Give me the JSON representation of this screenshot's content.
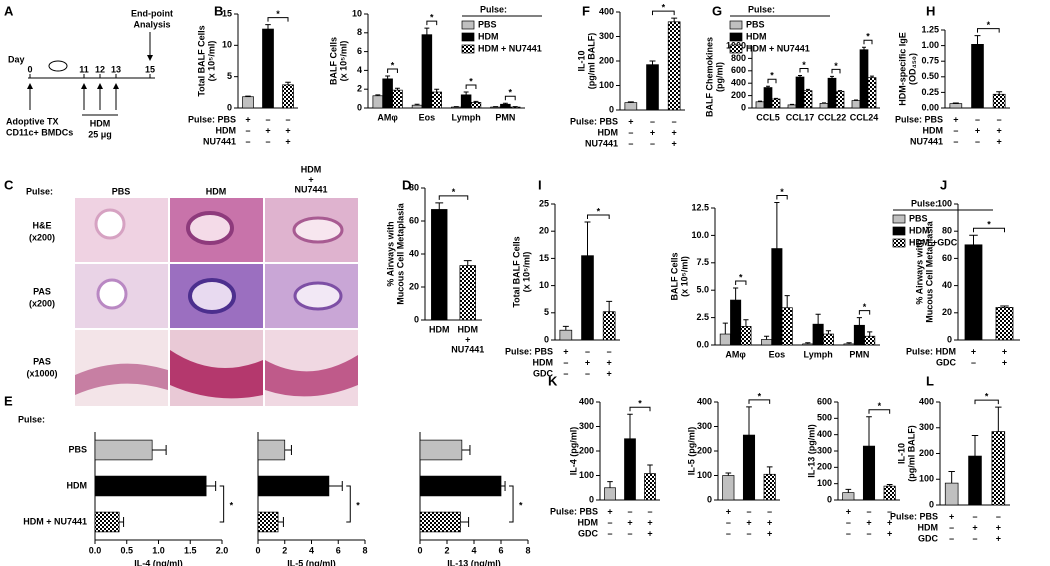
{
  "panel_labels": [
    "A",
    "B",
    "C",
    "D",
    "E",
    "F",
    "G",
    "H",
    "I",
    "J",
    "K",
    "L"
  ],
  "schematic": {
    "day": "Day",
    "days": [
      "0",
      "11",
      "12",
      "13",
      "15"
    ],
    "endpoint": [
      "End-point",
      "Analysis"
    ],
    "transfer": [
      "Adoptive TX",
      "CD11c+ BMDCs"
    ],
    "pulse": [
      "HDM",
      "25 μg"
    ]
  },
  "histology": {
    "pulse": "Pulse:",
    "columns": [
      [
        "PBS"
      ],
      [
        "HDM"
      ],
      [
        "HDM",
        "+",
        "NU7441"
      ]
    ],
    "rows": [
      [
        "H&E",
        "(x200)"
      ],
      [
        "PAS",
        "(x200)"
      ],
      [
        "PAS",
        "(x1000)"
      ]
    ]
  },
  "chart_data": [
    {
      "type": "bar",
      "ylabel": [
        "Total BALF Cells",
        "(x 10⁵/ml)"
      ],
      "values": [
        1.8,
        12.6,
        3.7
      ],
      "errors": [
        0.1,
        0.7,
        0.4
      ],
      "colors": [
        "#c0c0c0",
        "#000000",
        "checkered"
      ],
      "ylim": [
        0,
        15
      ],
      "yticks": [
        0,
        5,
        10,
        15
      ],
      "significance": [
        {
          "from": 1,
          "to": 2,
          "label": "*"
        }
      ],
      "table": [
        {
          "label": "Pulse: PBS",
          "marks": [
            "+",
            "–",
            "–"
          ]
        },
        {
          "label": "HDM",
          "marks": [
            "–",
            "+",
            "+"
          ]
        },
        {
          "label": "NU7441",
          "marks": [
            "–",
            "–",
            "+"
          ]
        }
      ]
    },
    {
      "type": "bar",
      "ylabel": [
        "BALF Cells",
        "(x 10⁵/ml)"
      ],
      "categories": [
        "AMφ",
        "Eos",
        "Lymph",
        "PMN"
      ],
      "legend_title": "Pulse:",
      "series": [
        {
          "name": "PBS",
          "color": "#c0c0c0",
          "values": [
            1.3,
            0.3,
            0.1,
            0.1
          ],
          "errors": [
            0.1,
            0.1,
            0.05,
            0.05
          ]
        },
        {
          "name": "HDM",
          "color": "#000000",
          "values": [
            3.1,
            7.8,
            1.4,
            0.4
          ],
          "errors": [
            0.3,
            0.7,
            0.3,
            0.1
          ]
        },
        {
          "name": "HDM + NU7441",
          "color": "checkered",
          "values": [
            1.9,
            1.7,
            0.6,
            0.1
          ],
          "errors": [
            0.2,
            0.3,
            0.1,
            0.05
          ]
        }
      ],
      "ylim": [
        0,
        10
      ],
      "yticks": [
        0,
        2,
        4,
        6,
        8,
        10
      ],
      "significance": [
        {
          "category": 0,
          "from": 1,
          "to": 2,
          "label": "*"
        },
        {
          "category": 1,
          "from": 1,
          "to": 2,
          "label": "*"
        },
        {
          "category": 2,
          "from": 1,
          "to": 2,
          "label": "*"
        },
        {
          "category": 3,
          "from": 1,
          "to": 2,
          "label": "*"
        }
      ]
    },
    {
      "type": "bar",
      "ylabel": [
        "IL-10",
        "(pg/ml BALF)"
      ],
      "values": [
        30,
        185,
        360
      ],
      "errors": [
        3,
        15,
        15
      ],
      "colors": [
        "#c0c0c0",
        "#000000",
        "checkered"
      ],
      "ylim": [
        0,
        400
      ],
      "yticks": [
        0,
        100,
        200,
        300,
        400
      ],
      "significance": [
        {
          "from": 1,
          "to": 2,
          "label": "*"
        }
      ],
      "table": [
        {
          "label": "Pulse: PBS",
          "marks": [
            "+",
            "–",
            "–"
          ]
        },
        {
          "label": "HDM",
          "marks": [
            "–",
            "+",
            "+"
          ]
        },
        {
          "label": "NU7441",
          "marks": [
            "–",
            "–",
            "+"
          ]
        }
      ]
    },
    {
      "type": "bar",
      "ylabel": [
        "BALF Chemokines",
        "(pg/ml)"
      ],
      "categories": [
        "CCL5",
        "CCL17",
        "CCL22",
        "CCL24"
      ],
      "legend_title": "Pulse:",
      "series": [
        {
          "name": "PBS",
          "color": "#c0c0c0",
          "values": [
            100,
            50,
            75,
            120
          ],
          "errors": [
            10,
            8,
            8,
            10
          ]
        },
        {
          "name": "HDM",
          "color": "#000000",
          "values": [
            330,
            500,
            480,
            940
          ],
          "errors": [
            20,
            25,
            30,
            40
          ]
        },
        {
          "name": "HDM + NU7441",
          "color": "checkered",
          "values": [
            145,
            280,
            270,
            490
          ],
          "errors": [
            10,
            20,
            10,
            25
          ]
        }
      ],
      "ylim": [
        0,
        1000
      ],
      "yticks": [
        0,
        200,
        400,
        600,
        800,
        1000
      ],
      "significance": [
        {
          "category": 0,
          "from": 1,
          "to": 2,
          "label": "*"
        },
        {
          "category": 1,
          "from": 1,
          "to": 2,
          "label": "*"
        },
        {
          "category": 2,
          "from": 1,
          "to": 2,
          "label": "*"
        },
        {
          "category": 3,
          "from": 1,
          "to": 2,
          "label": "*"
        }
      ]
    },
    {
      "type": "bar",
      "ylabel": [
        "HDM-specific IgE",
        "(OD₄₅₀)"
      ],
      "values": [
        0.07,
        1.02,
        0.22
      ],
      "errors": [
        0.01,
        0.14,
        0.04
      ],
      "colors": [
        "#c0c0c0",
        "#000000",
        "checkered"
      ],
      "ylim": [
        0,
        1.25
      ],
      "yticks": [
        {
          "value": 0,
          "label": "0.00"
        },
        {
          "value": 0.25,
          "label": "0.25"
        },
        {
          "value": 0.5,
          "label": "0.50"
        },
        {
          "value": 0.75,
          "label": "0.75"
        },
        {
          "value": 1,
          "label": "1.00"
        },
        {
          "value": 1.25,
          "label": "1.25"
        }
      ],
      "significance": [
        {
          "from": 1,
          "to": 2,
          "label": "*"
        }
      ],
      "table": [
        {
          "label": "Pulse: PBS",
          "marks": [
            "+",
            "–",
            "–"
          ]
        },
        {
          "label": "HDM",
          "marks": [
            "–",
            "+",
            "+"
          ]
        },
        {
          "label": "NU7441",
          "marks": [
            "–",
            "–",
            "+"
          ]
        }
      ]
    },
    {
      "type": "bar",
      "ylabel": [
        "% Airways with",
        "Mucous Cell Metaplasia"
      ],
      "categories": [
        "HDM",
        [
          "HDM",
          "+",
          "NU7441"
        ]
      ],
      "values": [
        67,
        33
      ],
      "errors": [
        4,
        3
      ],
      "colors": [
        "#000000",
        "checkered"
      ],
      "ylim": [
        0,
        80
      ],
      "yticks": [
        0,
        20,
        40,
        60,
        80
      ],
      "significance": [
        {
          "from": 0,
          "to": 1,
          "label": "*"
        }
      ]
    },
    {
      "type": "bar",
      "orientation": "horizontal",
      "category_title": "Pulse:",
      "categories": [
        "PBS",
        "HDM",
        "HDM + NU7441"
      ],
      "values": [
        0.9,
        1.75,
        0.38
      ],
      "errors": [
        0.22,
        0.15,
        0.07
      ],
      "colors": [
        "#c0c0c0",
        "#000000",
        "checkered"
      ],
      "xlabel": "IL-4 (ng/ml)",
      "xlim": [
        0,
        2
      ],
      "xticks": [
        {
          "value": 0,
          "label": "0.0"
        },
        {
          "value": 0.5,
          "label": "0.5"
        },
        {
          "value": 1,
          "label": "1.0"
        },
        {
          "value": 1.5,
          "label": "1.5"
        },
        {
          "value": 2,
          "label": "2.0"
        }
      ],
      "significance": [
        {
          "from": 1,
          "to": 2,
          "label": "*"
        }
      ]
    },
    {
      "type": "bar",
      "orientation": "horizontal",
      "categories": [
        null,
        null,
        null
      ],
      "values": [
        2.0,
        5.3,
        1.5
      ],
      "errors": [
        0.5,
        1.0,
        0.4
      ],
      "colors": [
        "#c0c0c0",
        "#000000",
        "checkered"
      ],
      "xlabel": "IL-5 (ng/ml)",
      "xlim": [
        0,
        8
      ],
      "xticks": [
        0,
        2,
        4,
        6,
        8
      ],
      "significance": [
        {
          "from": 1,
          "to": 2,
          "label": "*"
        }
      ]
    },
    {
      "type": "bar",
      "orientation": "horizontal",
      "categories": [
        null,
        null,
        null
      ],
      "values": [
        3.1,
        6.0,
        3.0
      ],
      "errors": [
        0.6,
        0.3,
        0.6
      ],
      "colors": [
        "#c0c0c0",
        "#000000",
        "checkered"
      ],
      "xlabel": "IL-13 (ng/ml)",
      "xlim": [
        0,
        8
      ],
      "xticks": [
        0,
        2,
        4,
        6,
        8
      ],
      "significance": [
        {
          "from": 1,
          "to": 2,
          "label": "*"
        }
      ]
    },
    {
      "type": "bar",
      "ylabel": [
        "Total BALF Cells",
        "(x 10⁵/ml)"
      ],
      "values": [
        1.8,
        15.5,
        5.2
      ],
      "errors": [
        0.7,
        6.2,
        1.9
      ],
      "colors": [
        "#c0c0c0",
        "#000000",
        "checkered"
      ],
      "ylim": [
        0,
        25
      ],
      "yticks": [
        0,
        5,
        10,
        15,
        20,
        25
      ],
      "significance": [
        {
          "from": 1,
          "to": 2,
          "label": "*"
        }
      ],
      "table": [
        {
          "label": "Pulse: PBS",
          "marks": [
            "+",
            "–",
            "–"
          ]
        },
        {
          "label": "HDM",
          "marks": [
            "–",
            "+",
            "+"
          ]
        },
        {
          "label": "GDC",
          "marks": [
            "–",
            "–",
            "+"
          ]
        }
      ]
    },
    {
      "type": "bar",
      "ylabel": [
        "BALF Cells",
        "(x 10⁵/ml)"
      ],
      "categories": [
        "AMφ",
        "Eos",
        "Lymph",
        "PMN"
      ],
      "legend_title": "Pulse:",
      "series": [
        {
          "name": "PBS",
          "color": "#c0c0c0",
          "values": [
            1.0,
            0.5,
            0.1,
            0.1
          ],
          "errors": [
            1.0,
            0.3,
            0.1,
            0.1
          ]
        },
        {
          "name": "HDM",
          "color": "#000000",
          "values": [
            4.1,
            8.8,
            1.9,
            1.8
          ],
          "errors": [
            1.1,
            4.2,
            0.9,
            0.7
          ]
        },
        {
          "name": "HDM +GDC",
          "color": "checkered",
          "values": [
            1.7,
            3.4,
            1.0,
            0.8
          ],
          "errors": [
            0.6,
            1.1,
            0.3,
            0.4
          ]
        }
      ],
      "ylim": [
        0,
        12.5
      ],
      "yticks": [
        {
          "value": 0,
          "label": "0.0"
        },
        {
          "value": 2.5,
          "label": "2.5"
        },
        {
          "value": 5,
          "label": "5.0"
        },
        {
          "value": 7.5,
          "label": "7.5"
        },
        {
          "value": 10,
          "label": "10.0"
        },
        {
          "value": 12.5,
          "label": "12.5"
        }
      ],
      "significance": [
        {
          "category": 0,
          "from": 1,
          "to": 2,
          "label": "*"
        },
        {
          "category": 1,
          "from": 1,
          "to": 2,
          "label": "*"
        },
        {
          "category": 3,
          "from": 1,
          "to": 2,
          "label": "*"
        }
      ]
    },
    {
      "type": "bar",
      "ylabel": [
        "% Airways with",
        "Mucous Cell Metaplasia"
      ],
      "values": [
        70,
        24
      ],
      "errors": [
        7,
        1
      ],
      "colors": [
        "#000000",
        "checkered"
      ],
      "ylim": [
        0,
        100
      ],
      "yticks": [
        0,
        20,
        40,
        60,
        80,
        100
      ],
      "significance": [
        {
          "from": 0,
          "to": 1,
          "label": "*"
        }
      ],
      "table": [
        {
          "label": "Pulse: HDM",
          "marks": [
            "+",
            "+"
          ]
        },
        {
          "label": "GDC",
          "marks": [
            "–",
            "+"
          ]
        }
      ]
    },
    {
      "type": "bar",
      "ylabel": [
        "IL-4 (pg/ml)"
      ],
      "values": [
        50,
        250,
        108
      ],
      "errors": [
        25,
        100,
        35
      ],
      "colors": [
        "#c0c0c0",
        "#000000",
        "checkered"
      ],
      "ylim": [
        0,
        400
      ],
      "yticks": [
        0,
        100,
        200,
        300,
        400
      ],
      "significance": [
        {
          "from": 1,
          "to": 2,
          "label": "*"
        }
      ],
      "table": [
        {
          "label": "Pulse: PBS",
          "marks": [
            "+",
            "–",
            "–"
          ]
        },
        {
          "label": "HDM",
          "marks": [
            "–",
            "+",
            "+"
          ]
        },
        {
          "label": "GDC",
          "marks": [
            "–",
            "–",
            "+"
          ]
        }
      ]
    },
    {
      "type": "bar",
      "ylabel": [
        "IL-5 (pg/ml)"
      ],
      "values": [
        100,
        265,
        105
      ],
      "errors": [
        10,
        115,
        30
      ],
      "colors": [
        "#c0c0c0",
        "#000000",
        "checkered"
      ],
      "ylim": [
        0,
        400
      ],
      "yticks": [
        0,
        100,
        200,
        300,
        400
      ],
      "significance": [
        {
          "from": 1,
          "to": 2,
          "label": "*"
        }
      ],
      "table": [
        {
          "marks": [
            "+",
            "–",
            "–"
          ]
        },
        {
          "marks": [
            "–",
            "+",
            "+"
          ]
        },
        {
          "marks": [
            "–",
            "–",
            "+"
          ]
        }
      ]
    },
    {
      "type": "bar",
      "ylabel": [
        "IL-13 (pg/ml)"
      ],
      "values": [
        45,
        330,
        85
      ],
      "errors": [
        20,
        180,
        10
      ],
      "colors": [
        "#c0c0c0",
        "#000000",
        "checkered"
      ],
      "ylim": [
        0,
        600
      ],
      "yticks": [
        0,
        100,
        200,
        300,
        400,
        500,
        600
      ],
      "significance": [
        {
          "from": 1,
          "to": 2,
          "label": "*"
        }
      ],
      "table": [
        {
          "marks": [
            "+",
            "–",
            "–"
          ]
        },
        {
          "marks": [
            "–",
            "+",
            "+"
          ]
        },
        {
          "marks": [
            "–",
            "–",
            "+"
          ]
        }
      ]
    },
    {
      "type": "bar",
      "ylabel": [
        "IL-10",
        "(pg/ml BALF)"
      ],
      "values": [
        85,
        190,
        285
      ],
      "errors": [
        45,
        80,
        95
      ],
      "colors": [
        "#c0c0c0",
        "#000000",
        "checkered"
      ],
      "ylim": [
        0,
        400
      ],
      "yticks": [
        0,
        100,
        200,
        300,
        400
      ],
      "significance": [
        {
          "from": 1,
          "to": 2,
          "label": "*"
        }
      ],
      "table": [
        {
          "label": "Pulse: PBS",
          "marks": [
            "+",
            "–",
            "–"
          ]
        },
        {
          "label": "HDM",
          "marks": [
            "–",
            "+",
            "+"
          ]
        },
        {
          "label": "GDC",
          "marks": [
            "–",
            "–",
            "+"
          ]
        }
      ]
    }
  ]
}
